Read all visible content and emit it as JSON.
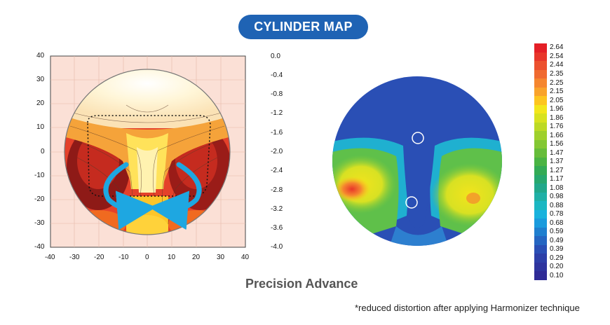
{
  "title": "CYLINDER MAP",
  "subtitle": "Precision Advance",
  "footnote": "*reduced distortion after applying Harmonizer technique",
  "left_plot": {
    "x_ticks": [
      "-40",
      "-30",
      "-20",
      "-10",
      "0",
      "10",
      "20",
      "30",
      "40"
    ],
    "y_ticks": [
      "40",
      "30",
      "20",
      "10",
      "0",
      "-10",
      "-20",
      "-30",
      "-40"
    ],
    "colorbar_ticks": [
      "0.0",
      "-0.4",
      "-0.8",
      "-1.2",
      "-1.6",
      "-2.0",
      "-2.4",
      "-2.8",
      "-3.2",
      "-3.6",
      "-4.0"
    ]
  },
  "scale": {
    "values": [
      "2.64",
      "2.54",
      "2.44",
      "2.35",
      "2.25",
      "2.15",
      "2.05",
      "1.96",
      "1.86",
      "1.76",
      "1.66",
      "1.56",
      "1.47",
      "1.37",
      "1.27",
      "1.17",
      "1.08",
      "0.98",
      "0.88",
      "0.78",
      "0.68",
      "0.59",
      "0.49",
      "0.39",
      "0.29",
      "0.20",
      "0.10"
    ],
    "colors": [
      "#e41f26",
      "#e8362a",
      "#ec502e",
      "#f06a30",
      "#f5862f",
      "#f9a32b",
      "#fdc51f",
      "#f3e61b",
      "#d8e21f",
      "#bcd925",
      "#9fd02c",
      "#83c733",
      "#66bd3a",
      "#4ab443",
      "#33ab55",
      "#27a86e",
      "#21a88a",
      "#1fb0a6",
      "#1bb7c2",
      "#19b2dd",
      "#1a9bdd",
      "#1f7fcf",
      "#2566c2",
      "#2a4fb5",
      "#2d3fa8",
      "#2e349e",
      "#2f2b96"
    ]
  }
}
